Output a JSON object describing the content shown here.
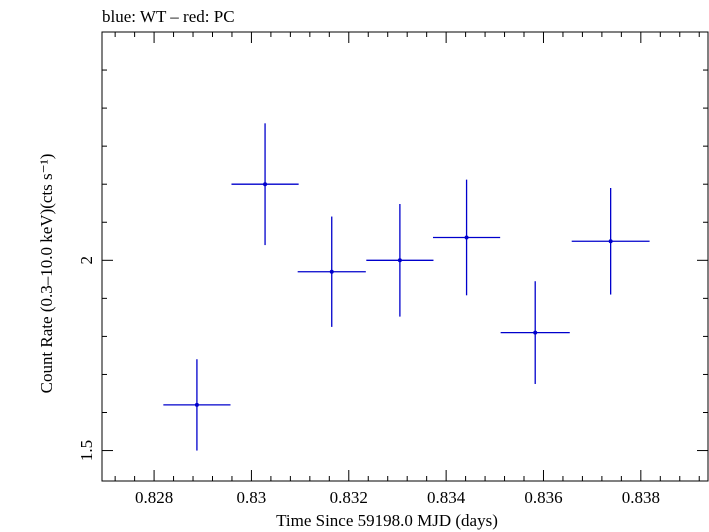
{
  "chart_data": {
    "type": "scatter",
    "title": "blue: WT – red: PC",
    "xlabel": "Time Since 59198.0 MJD (days)",
    "ylabel": "Count Rate (0.3–10.0 keV)(cts s⁻¹)",
    "xlim": [
      0.82693,
      0.83938
    ],
    "ylim": [
      1.42,
      2.6
    ],
    "xticks": [
      0.828,
      0.83,
      0.832,
      0.834,
      0.836,
      0.838
    ],
    "xtick_labels": [
      "0.828",
      "0.83",
      "0.832",
      "0.834",
      "0.836",
      "0.838"
    ],
    "yticks": [
      1.5,
      2
    ],
    "ytick_labels": [
      "1.5",
      "2"
    ],
    "series": [
      {
        "color": "#0000cc",
        "points": [
          {
            "x": 0.82888,
            "y": 1.62,
            "xerr": 0.00069,
            "yerr_lo": 0.12,
            "yerr_hi": 0.12
          },
          {
            "x": 0.83028,
            "y": 2.2,
            "xerr": 0.00069,
            "yerr_lo": 0.16,
            "yerr_hi": 0.16
          },
          {
            "x": 0.83165,
            "y": 1.97,
            "xerr": 0.0007,
            "yerr_lo": 0.145,
            "yerr_hi": 0.145
          },
          {
            "x": 0.83305,
            "y": 2.0,
            "xerr": 0.00069,
            "yerr_lo": 0.148,
            "yerr_hi": 0.148
          },
          {
            "x": 0.83442,
            "y": 2.06,
            "xerr": 0.00069,
            "yerr_lo": 0.152,
            "yerr_hi": 0.152
          },
          {
            "x": 0.83583,
            "y": 1.81,
            "xerr": 0.00071,
            "yerr_lo": 0.135,
            "yerr_hi": 0.135
          },
          {
            "x": 0.83738,
            "y": 2.05,
            "xerr": 0.0008,
            "yerr_lo": 0.14,
            "yerr_hi": 0.14
          }
        ]
      }
    ]
  }
}
